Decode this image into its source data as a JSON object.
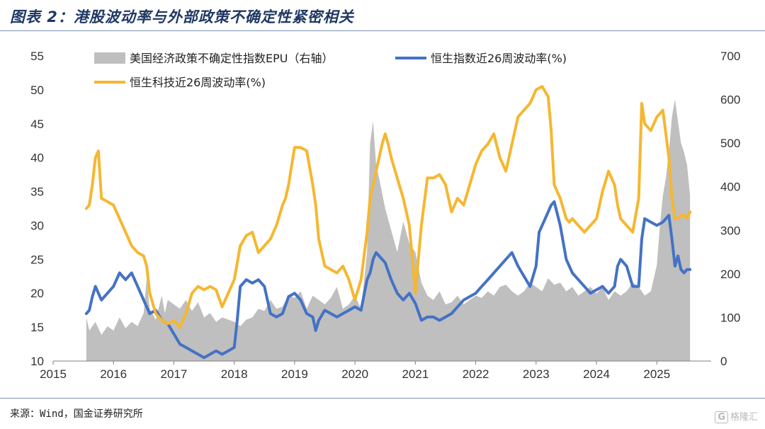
{
  "title": "图表 2：港股波动率与外部政策不确定性紧密相关",
  "source": "来源：Wind，国金证券研究所",
  "watermark": "格隆汇",
  "watermark_icon": "G",
  "chart_data": {
    "type": "line",
    "title": "图表 2：港股波动率与外部政策不确定性紧密相关",
    "xlabel": "",
    "ylabel": "",
    "xlim": [
      2015,
      2025.9
    ],
    "ylim": [
      10,
      55
    ],
    "y2lim": [
      0,
      700
    ],
    "x_ticks": [
      2015,
      2016,
      2017,
      2018,
      2019,
      2020,
      2021,
      2022,
      2023,
      2024,
      2025
    ],
    "x_tick_labels": [
      "2015",
      "2016",
      "2017",
      "2018",
      "2019",
      "2020",
      "2021",
      "2022",
      "2023",
      "2024",
      "2025"
    ],
    "y_ticks": [
      10,
      15,
      20,
      25,
      30,
      35,
      40,
      45,
      50,
      55
    ],
    "y2_ticks": [
      0,
      100,
      200,
      300,
      400,
      500,
      600,
      700
    ],
    "grid": false,
    "legend_position": "top",
    "series": [
      {
        "name": "美国经济政策不确定性指数EPU（右轴）",
        "type": "area",
        "axis": "right",
        "color": "#bfbfbf",
        "x": [
          2015.55,
          2015.6,
          2015.7,
          2015.8,
          2015.9,
          2016.0,
          2016.1,
          2016.2,
          2016.3,
          2016.4,
          2016.5,
          2016.55,
          2016.6,
          2016.7,
          2016.8,
          2016.85,
          2016.9,
          2017.0,
          2017.1,
          2017.2,
          2017.3,
          2017.4,
          2017.5,
          2017.6,
          2017.7,
          2017.8,
          2017.9,
          2018.0,
          2018.1,
          2018.2,
          2018.3,
          2018.4,
          2018.5,
          2018.6,
          2018.7,
          2018.8,
          2018.9,
          2019.0,
          2019.1,
          2019.2,
          2019.3,
          2019.4,
          2019.5,
          2019.6,
          2019.7,
          2019.8,
          2019.9,
          2020.0,
          2020.1,
          2020.2,
          2020.25,
          2020.3,
          2020.35,
          2020.4,
          2020.5,
          2020.6,
          2020.7,
          2020.8,
          2020.9,
          2021.0,
          2021.1,
          2021.2,
          2021.3,
          2021.4,
          2021.5,
          2021.6,
          2021.7,
          2021.8,
          2021.9,
          2022.0,
          2022.1,
          2022.2,
          2022.3,
          2022.4,
          2022.5,
          2022.6,
          2022.7,
          2022.8,
          2022.9,
          2023.0,
          2023.1,
          2023.2,
          2023.3,
          2023.4,
          2023.5,
          2023.6,
          2023.7,
          2023.8,
          2023.9,
          2024.0,
          2024.1,
          2024.2,
          2024.3,
          2024.4,
          2024.5,
          2024.6,
          2024.7,
          2024.8,
          2024.9,
          2025.0,
          2025.05,
          2025.1,
          2025.15,
          2025.2,
          2025.25,
          2025.3,
          2025.35,
          2025.4,
          2025.45,
          2025.5,
          2025.55
        ],
        "values": [
          100,
          70,
          90,
          60,
          80,
          70,
          100,
          75,
          90,
          80,
          110,
          190,
          120,
          95,
          150,
          110,
          140,
          130,
          120,
          140,
          115,
          135,
          100,
          110,
          90,
          100,
          95,
          90,
          80,
          95,
          100,
          120,
          115,
          140,
          120,
          125,
          150,
          145,
          160,
          120,
          150,
          140,
          130,
          145,
          170,
          120,
          130,
          150,
          120,
          250,
          500,
          550,
          450,
          420,
          350,
          300,
          250,
          320,
          270,
          250,
          180,
          150,
          140,
          160,
          130,
          135,
          150,
          130,
          140,
          150,
          145,
          160,
          150,
          170,
          175,
          160,
          150,
          160,
          180,
          170,
          160,
          190,
          175,
          180,
          160,
          170,
          150,
          160,
          170,
          155,
          170,
          140,
          160,
          150,
          160,
          180,
          170,
          150,
          160,
          220,
          310,
          380,
          420,
          480,
          560,
          600,
          550,
          500,
          480,
          450,
          380
        ]
      },
      {
        "name": "恒生指数近26周波动率(%)",
        "type": "line",
        "axis": "left",
        "color": "#4472c4",
        "x": [
          2015.55,
          2015.6,
          2015.65,
          2015.7,
          2015.8,
          2015.9,
          2016.0,
          2016.1,
          2016.15,
          2016.2,
          2016.3,
          2016.4,
          2016.5,
          2016.6,
          2016.7,
          2016.8,
          2016.9,
          2017.0,
          2017.1,
          2017.2,
          2017.3,
          2017.4,
          2017.5,
          2017.6,
          2017.7,
          2017.8,
          2017.9,
          2018.0,
          2018.05,
          2018.1,
          2018.15,
          2018.2,
          2018.3,
          2018.4,
          2018.5,
          2018.6,
          2018.7,
          2018.8,
          2018.9,
          2019.0,
          2019.1,
          2019.2,
          2019.3,
          2019.35,
          2019.4,
          2019.5,
          2019.6,
          2019.7,
          2019.8,
          2019.9,
          2020.0,
          2020.1,
          2020.2,
          2020.25,
          2020.3,
          2020.35,
          2020.4,
          2020.5,
          2020.6,
          2020.7,
          2020.8,
          2020.9,
          2021.0,
          2021.1,
          2021.2,
          2021.3,
          2021.4,
          2021.5,
          2021.6,
          2021.7,
          2021.8,
          2021.9,
          2022.0,
          2022.1,
          2022.2,
          2022.3,
          2022.4,
          2022.5,
          2022.6,
          2022.7,
          2022.8,
          2022.9,
          2023.0,
          2023.05,
          2023.1,
          2023.2,
          2023.25,
          2023.3,
          2023.4,
          2023.5,
          2023.6,
          2023.7,
          2023.8,
          2023.9,
          2024.0,
          2024.1,
          2024.2,
          2024.3,
          2024.35,
          2024.4,
          2024.5,
          2024.6,
          2024.7,
          2024.75,
          2024.8,
          2024.9,
          2025.0,
          2025.1,
          2025.2,
          2025.25,
          2025.3,
          2025.35,
          2025.4,
          2025.45,
          2025.5,
          2025.55
        ],
        "values": [
          17.0,
          17.5,
          19.5,
          21.0,
          19.0,
          20.0,
          21.0,
          23.0,
          22.5,
          22.0,
          23.0,
          21.0,
          19.0,
          17.0,
          17.5,
          16.0,
          15.5,
          14.0,
          12.5,
          12.0,
          11.5,
          11.0,
          10.5,
          11.0,
          11.5,
          11.0,
          11.5,
          12.0,
          16.0,
          21.0,
          21.5,
          22.0,
          21.5,
          22.0,
          21.0,
          17.0,
          16.5,
          17.0,
          19.5,
          20.0,
          19.0,
          17.0,
          16.5,
          14.5,
          16.0,
          17.5,
          17.0,
          16.5,
          17.0,
          17.5,
          18.0,
          17.5,
          22.0,
          23.0,
          25.0,
          26.0,
          25.5,
          24.5,
          22.0,
          20.0,
          19.0,
          20.0,
          18.5,
          16.0,
          16.5,
          16.5,
          16.0,
          16.5,
          17.0,
          18.0,
          19.0,
          19.5,
          20.0,
          21.0,
          22.0,
          23.0,
          24.0,
          25.0,
          26.0,
          24.0,
          22.5,
          21.0,
          24.0,
          29.0,
          30.0,
          32.0,
          33.0,
          33.5,
          30.0,
          25.0,
          23.0,
          22.0,
          21.0,
          20.0,
          20.5,
          21.0,
          20.0,
          21.0,
          24.0,
          25.0,
          24.0,
          21.0,
          21.0,
          28.0,
          31.0,
          30.5,
          30.0,
          30.5,
          31.5,
          28.0,
          24.0,
          25.5,
          23.5,
          23.0,
          23.5,
          23.5
        ]
      },
      {
        "name": "恒生科技近26周波动率(%)",
        "type": "line",
        "axis": "left",
        "color": "#f5b731",
        "x": [
          2015.55,
          2015.6,
          2015.65,
          2015.7,
          2015.75,
          2015.8,
          2015.9,
          2016.0,
          2016.1,
          2016.2,
          2016.3,
          2016.4,
          2016.5,
          2016.55,
          2016.6,
          2016.7,
          2016.8,
          2016.9,
          2017.0,
          2017.1,
          2017.2,
          2017.3,
          2017.4,
          2017.5,
          2017.6,
          2017.7,
          2017.8,
          2017.9,
          2018.0,
          2018.1,
          2018.2,
          2018.3,
          2018.4,
          2018.5,
          2018.6,
          2018.7,
          2018.8,
          2018.85,
          2018.9,
          2019.0,
          2019.1,
          2019.2,
          2019.3,
          2019.35,
          2019.4,
          2019.5,
          2019.6,
          2019.7,
          2019.8,
          2019.9,
          2020.0,
          2020.1,
          2020.2,
          2020.25,
          2020.3,
          2020.4,
          2020.45,
          2020.5,
          2020.55,
          2020.6,
          2020.7,
          2020.8,
          2020.9,
          2021.0,
          2021.05,
          2021.1,
          2021.2,
          2021.3,
          2021.4,
          2021.5,
          2021.6,
          2021.7,
          2021.8,
          2021.9,
          2022.0,
          2022.1,
          2022.2,
          2022.3,
          2022.4,
          2022.5,
          2022.6,
          2022.7,
          2022.8,
          2022.9,
          2023.0,
          2023.1,
          2023.2,
          2023.25,
          2023.3,
          2023.4,
          2023.5,
          2023.55,
          2023.6,
          2023.7,
          2023.8,
          2023.9,
          2024.0,
          2024.1,
          2024.2,
          2024.3,
          2024.35,
          2024.4,
          2024.5,
          2024.6,
          2024.7,
          2024.75,
          2024.8,
          2024.9,
          2025.0,
          2025.1,
          2025.2,
          2025.25,
          2025.3,
          2025.35,
          2025.4,
          2025.45,
          2025.5,
          2025.55
        ],
        "values": [
          32.5,
          33.0,
          36.0,
          40.0,
          41.0,
          34.0,
          33.5,
          33.0,
          31.0,
          29.0,
          27.0,
          26.0,
          25.5,
          24.0,
          20.0,
          17.0,
          16.0,
          15.5,
          16.0,
          15.0,
          17.0,
          20.0,
          21.0,
          20.5,
          21.0,
          20.5,
          18.0,
          20.0,
          22.0,
          27.0,
          28.5,
          29.0,
          26.0,
          27.0,
          28.0,
          30.0,
          33.0,
          34.0,
          36.0,
          41.5,
          41.5,
          41.0,
          36.0,
          33.0,
          28.0,
          24.0,
          23.5,
          23.0,
          24.0,
          22.0,
          19.0,
          22.0,
          29.0,
          34.0,
          36.0,
          40.0,
          42.0,
          43.5,
          42.0,
          40.0,
          37.0,
          34.0,
          30.0,
          20.0,
          25.0,
          30.0,
          37.0,
          37.0,
          37.5,
          36.0,
          32.0,
          34.0,
          33.0,
          36.0,
          39.0,
          41.0,
          42.0,
          43.5,
          40.0,
          38.0,
          42.0,
          46.0,
          47.0,
          48.0,
          50.0,
          50.5,
          49.0,
          44.0,
          36.0,
          34.0,
          31.0,
          30.5,
          31.0,
          30.0,
          29.0,
          30.0,
          31.0,
          35.0,
          38.0,
          36.0,
          33.0,
          31.0,
          30.0,
          29.0,
          34.0,
          48.0,
          45.0,
          44.0,
          46.0,
          47.0,
          40.0,
          34.0,
          31.0,
          31.0,
          31.5,
          31.5,
          31.0,
          32.0
        ]
      }
    ]
  }
}
